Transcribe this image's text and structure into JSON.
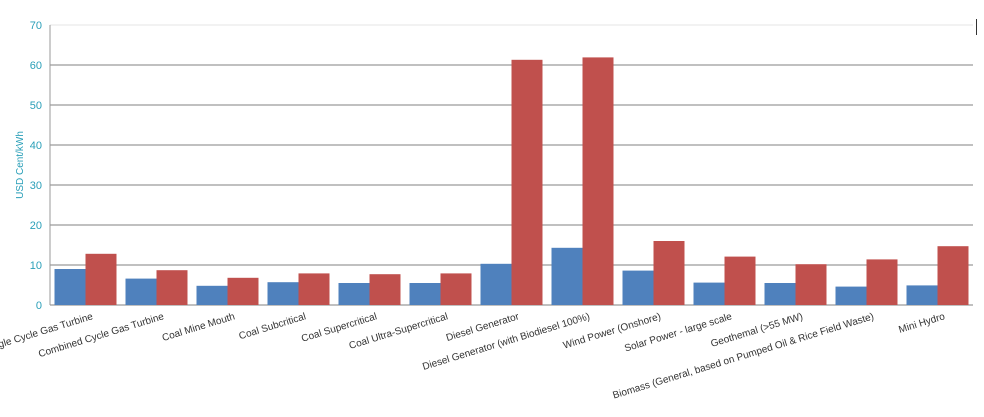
{
  "chart_data": {
    "type": "bar",
    "ylabel": "USD Cent/kWh",
    "ylim": [
      0,
      70
    ],
    "yticks": [
      0,
      10,
      20,
      30,
      40,
      50,
      60,
      70
    ],
    "grid": true,
    "categories": [
      "Single Cycle Gas Turbine",
      "Combined Cycle Gas Turbine",
      "Coal Mine Mouth",
      "Coal Subcritical",
      "Coal Supercritical",
      "Coal Ultra-Supercritical",
      "Diesel Generator",
      "Diesel Generator (with Biodiesel 100%)",
      "Wind Power (Onshore)",
      "Solar Power - large scale",
      "Geothemal (>55 MW)",
      "Biomass (General, based on Pumped Oil & Rice Field Waste)",
      "Mini Hydro"
    ],
    "series": [
      {
        "values": [
          9.0,
          6.6,
          4.8,
          5.7,
          5.5,
          5.5,
          10.3,
          14.3,
          8.6,
          5.6,
          5.5,
          4.6,
          4.9
        ],
        "color": "#4f81bd"
      },
      {
        "values": [
          12.8,
          8.7,
          6.8,
          7.9,
          7.7,
          7.9,
          61.3,
          61.9,
          16.0,
          12.1,
          10.2,
          11.4,
          14.7
        ],
        "color": "#c0504d"
      }
    ]
  }
}
